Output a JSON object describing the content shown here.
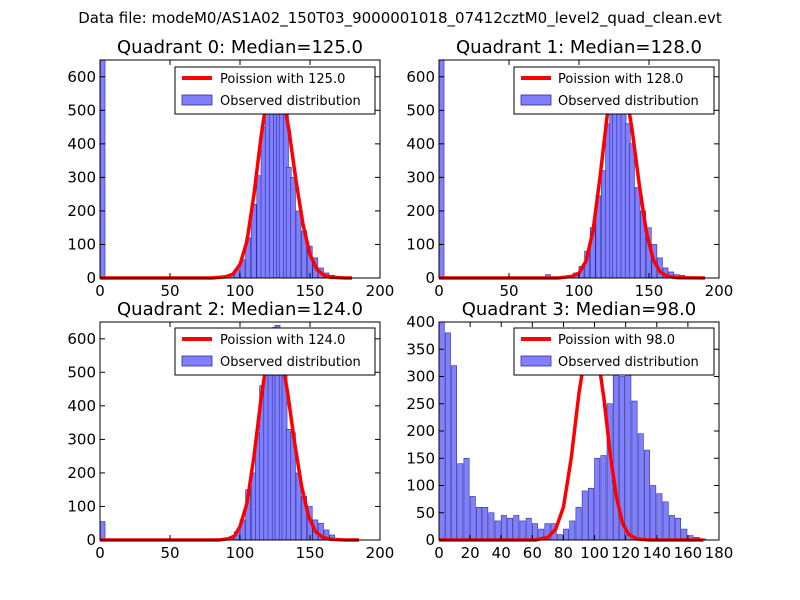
{
  "suptitle": "Data file: modeM0/AS1A02_150T03_9000001018_07412cztM0_level2_quad_clean.evt",
  "colors": {
    "bar_fill": "#8080ff",
    "bar_edge": "#2c2c9a",
    "poisson": "#ff0000",
    "frame": "#000000"
  },
  "chart_data": [
    {
      "type": "bar",
      "title": "Quadrant 0: Median=125.0",
      "xlim": [
        0,
        200
      ],
      "ylim": [
        0,
        650
      ],
      "xticks": [
        0,
        50,
        100,
        150,
        200
      ],
      "yticks": [
        0,
        100,
        200,
        300,
        400,
        500,
        600
      ],
      "bin_width": 3.6,
      "legend": {
        "line": "Poission with 125.0",
        "bars": "Observed distribution",
        "placement": "top-right"
      },
      "bars": [
        [
          0,
          650
        ],
        [
          72,
          3
        ],
        [
          76,
          3
        ],
        [
          80,
          2
        ],
        [
          84,
          2
        ],
        [
          88,
          5
        ],
        [
          92,
          10
        ],
        [
          96,
          25
        ],
        [
          100,
          55
        ],
        [
          104,
          120
        ],
        [
          108,
          220
        ],
        [
          112,
          305
        ],
        [
          115,
          450
        ],
        [
          118,
          520
        ],
        [
          121,
          590
        ],
        [
          124,
          620
        ],
        [
          126,
          600
        ],
        [
          128,
          530
        ],
        [
          131,
          490
        ],
        [
          133,
          330
        ],
        [
          136,
          300
        ],
        [
          140,
          200
        ],
        [
          144,
          140
        ],
        [
          148,
          95
        ],
        [
          152,
          60
        ],
        [
          156,
          30
        ],
        [
          160,
          15
        ],
        [
          164,
          8
        ],
        [
          168,
          4
        ],
        [
          172,
          2
        ],
        [
          176,
          1
        ]
      ],
      "poisson": [
        [
          0,
          0
        ],
        [
          80,
          0
        ],
        [
          90,
          4
        ],
        [
          95,
          12
        ],
        [
          100,
          40
        ],
        [
          105,
          110
        ],
        [
          110,
          250
        ],
        [
          115,
          420
        ],
        [
          120,
          560
        ],
        [
          125,
          610
        ],
        [
          130,
          560
        ],
        [
          135,
          440
        ],
        [
          140,
          290
        ],
        [
          145,
          160
        ],
        [
          150,
          70
        ],
        [
          155,
          25
        ],
        [
          160,
          8
        ],
        [
          165,
          2
        ],
        [
          175,
          0
        ],
        [
          180,
          0
        ]
      ]
    },
    {
      "type": "bar",
      "title": "Quadrant 1: Median=128.0",
      "xlim": [
        0,
        200
      ],
      "ylim": [
        0,
        650
      ],
      "xticks": [
        0,
        50,
        100,
        150,
        200
      ],
      "yticks": [
        0,
        100,
        200,
        300,
        400,
        500,
        600
      ],
      "bin_width": 3.6,
      "legend": {
        "line": "Poission with 128.0",
        "bars": "Observed distribution",
        "placement": "top-right"
      },
      "bars": [
        [
          0,
          650
        ],
        [
          76,
          10
        ],
        [
          88,
          2
        ],
        [
          92,
          5
        ],
        [
          96,
          15
        ],
        [
          100,
          35
        ],
        [
          104,
          80
        ],
        [
          108,
          150
        ],
        [
          112,
          245
        ],
        [
          116,
          320
        ],
        [
          119,
          460
        ],
        [
          122,
          540
        ],
        [
          124,
          590
        ],
        [
          127,
          600
        ],
        [
          130,
          560
        ],
        [
          133,
          460
        ],
        [
          136,
          400
        ],
        [
          140,
          270
        ],
        [
          144,
          200
        ],
        [
          148,
          150
        ],
        [
          152,
          100
        ],
        [
          156,
          60
        ],
        [
          160,
          30
        ],
        [
          164,
          18
        ],
        [
          168,
          10
        ],
        [
          172,
          8
        ],
        [
          176,
          3
        ],
        [
          180,
          2
        ],
        [
          184,
          1
        ]
      ],
      "poisson": [
        [
          0,
          0
        ],
        [
          85,
          0
        ],
        [
          95,
          5
        ],
        [
          100,
          15
        ],
        [
          105,
          50
        ],
        [
          110,
          140
        ],
        [
          115,
          300
        ],
        [
          120,
          480
        ],
        [
          125,
          590
        ],
        [
          128,
          610
        ],
        [
          133,
          570
        ],
        [
          138,
          440
        ],
        [
          143,
          280
        ],
        [
          148,
          140
        ],
        [
          153,
          55
        ],
        [
          158,
          18
        ],
        [
          163,
          5
        ],
        [
          170,
          1
        ],
        [
          190,
          0
        ]
      ]
    },
    {
      "type": "bar",
      "title": "Quadrant 2: Median=124.0",
      "xlim": [
        0,
        200
      ],
      "ylim": [
        0,
        650
      ],
      "xticks": [
        0,
        50,
        100,
        150,
        200
      ],
      "yticks": [
        0,
        100,
        200,
        300,
        400,
        500,
        600
      ],
      "bin_width": 3.6,
      "legend": {
        "line": "Poission with 124.0",
        "bars": "Observed distribution",
        "placement": "top-right"
      },
      "bars": [
        [
          0,
          55
        ],
        [
          60,
          3
        ],
        [
          88,
          3
        ],
        [
          92,
          10
        ],
        [
          96,
          25
        ],
        [
          100,
          60
        ],
        [
          104,
          150
        ],
        [
          108,
          200
        ],
        [
          111,
          320
        ],
        [
          114,
          460
        ],
        [
          117,
          540
        ],
        [
          120,
          500
        ],
        [
          123,
          590
        ],
        [
          125,
          640
        ],
        [
          128,
          620
        ],
        [
          130,
          500
        ],
        [
          133,
          330
        ],
        [
          136,
          320
        ],
        [
          140,
          200
        ],
        [
          144,
          130
        ],
        [
          148,
          100
        ],
        [
          152,
          60
        ],
        [
          156,
          50
        ],
        [
          160,
          30
        ],
        [
          164,
          15
        ],
        [
          168,
          5
        ],
        [
          172,
          2
        ],
        [
          176,
          1
        ]
      ],
      "poisson": [
        [
          0,
          0
        ],
        [
          85,
          0
        ],
        [
          92,
          4
        ],
        [
          96,
          12
        ],
        [
          100,
          40
        ],
        [
          105,
          110
        ],
        [
          110,
          250
        ],
        [
          115,
          420
        ],
        [
          120,
          560
        ],
        [
          124,
          630
        ],
        [
          129,
          560
        ],
        [
          134,
          440
        ],
        [
          139,
          290
        ],
        [
          144,
          160
        ],
        [
          149,
          70
        ],
        [
          154,
          25
        ],
        [
          159,
          8
        ],
        [
          165,
          2
        ],
        [
          175,
          0
        ],
        [
          185,
          0
        ]
      ]
    },
    {
      "type": "bar",
      "title": "Quadrant 3: Median=98.0",
      "xlim": [
        0,
        180
      ],
      "ylim": [
        0,
        400
      ],
      "xticks": [
        0,
        20,
        40,
        60,
        80,
        100,
        120,
        140,
        160,
        180
      ],
      "yticks": [
        0,
        50,
        100,
        150,
        200,
        250,
        300,
        350,
        400
      ],
      "bin_width": 3.4,
      "legend": {
        "line": "Poission with 98.0",
        "bars": "Observed distribution",
        "placement": "top-right"
      },
      "bars": [
        [
          0,
          400
        ],
        [
          4,
          380
        ],
        [
          8,
          320
        ],
        [
          12,
          140
        ],
        [
          16,
          150
        ],
        [
          20,
          80
        ],
        [
          24,
          60
        ],
        [
          28,
          60
        ],
        [
          32,
          50
        ],
        [
          36,
          35
        ],
        [
          40,
          45
        ],
        [
          44,
          40
        ],
        [
          48,
          45
        ],
        [
          52,
          35
        ],
        [
          56,
          40
        ],
        [
          60,
          30
        ],
        [
          64,
          20
        ],
        [
          68,
          30
        ],
        [
          72,
          30
        ],
        [
          76,
          10
        ],
        [
          80,
          20
        ],
        [
          84,
          35
        ],
        [
          88,
          60
        ],
        [
          92,
          90
        ],
        [
          96,
          95
        ],
        [
          100,
          150
        ],
        [
          104,
          155
        ],
        [
          108,
          250
        ],
        [
          112,
          330
        ],
        [
          116,
          300
        ],
        [
          120,
          360
        ],
        [
          124,
          255
        ],
        [
          128,
          195
        ],
        [
          132,
          165
        ],
        [
          136,
          100
        ],
        [
          140,
          85
        ],
        [
          144,
          70
        ],
        [
          148,
          45
        ],
        [
          152,
          40
        ],
        [
          156,
          20
        ],
        [
          160,
          8
        ],
        [
          164,
          5
        ],
        [
          168,
          2
        ]
      ],
      "poisson": [
        [
          0,
          0
        ],
        [
          62,
          0
        ],
        [
          70,
          5
        ],
        [
          75,
          20
        ],
        [
          80,
          60
        ],
        [
          85,
          150
        ],
        [
          90,
          270
        ],
        [
          95,
          360
        ],
        [
          98,
          380
        ],
        [
          102,
          340
        ],
        [
          106,
          260
        ],
        [
          110,
          160
        ],
        [
          114,
          80
        ],
        [
          118,
          30
        ],
        [
          122,
          10
        ],
        [
          127,
          2
        ],
        [
          135,
          0
        ],
        [
          170,
          0
        ]
      ]
    }
  ]
}
